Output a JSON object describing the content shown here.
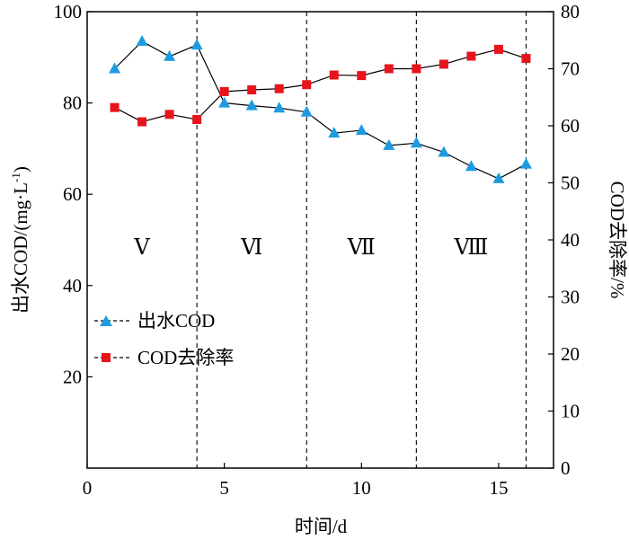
{
  "chart_data": {
    "type": "line",
    "xlabel": "时间/d",
    "ylabel_left": "出水COD/(mg·L",
    "ylabel_left_sup": "-1",
    "ylabel_left_close": ")",
    "ylabel_right": "COD去除率/%",
    "xlim": [
      0,
      17
    ],
    "ylim_left": [
      0,
      100
    ],
    "ylim_right": [
      0,
      80
    ],
    "x_ticks": [
      0,
      5,
      10,
      15
    ],
    "y_left_ticks": [
      20,
      40,
      60,
      80,
      100
    ],
    "y_right_ticks": [
      0,
      10,
      20,
      30,
      40,
      50,
      60,
      70,
      80
    ],
    "stage_boundaries": [
      4,
      8,
      12,
      16
    ],
    "stages": [
      {
        "label": "Ⅴ",
        "x": 2
      },
      {
        "label": "Ⅵ",
        "x": 6
      },
      {
        "label": "Ⅶ",
        "x": 10
      },
      {
        "label": "Ⅷ",
        "x": 14
      }
    ],
    "legend_position": "left-middle",
    "series": [
      {
        "name": "出水COD",
        "axis": "left",
        "marker": "triangle",
        "color": "#1E9BE0",
        "x": [
          1,
          2,
          3,
          4,
          5,
          6,
          7,
          8,
          9,
          10,
          11,
          12,
          13,
          14,
          15,
          16
        ],
        "values": [
          87.5,
          93.5,
          90.2,
          92.7,
          80.0,
          79.4,
          78.9,
          78.0,
          73.4,
          74.0,
          70.7,
          71.2,
          69.2,
          66.1,
          63.4,
          66.6
        ]
      },
      {
        "name": "COD去除率",
        "axis": "right",
        "marker": "square",
        "color": "#E8141C",
        "x": [
          1,
          2,
          3,
          4,
          5,
          6,
          7,
          8,
          9,
          10,
          11,
          12,
          13,
          14,
          15,
          16
        ],
        "values": [
          63.2,
          60.7,
          62.0,
          61.1,
          66.0,
          66.3,
          66.5,
          67.2,
          68.9,
          68.8,
          70.0,
          70.0,
          70.8,
          72.2,
          73.4,
          71.8
        ]
      }
    ]
  }
}
